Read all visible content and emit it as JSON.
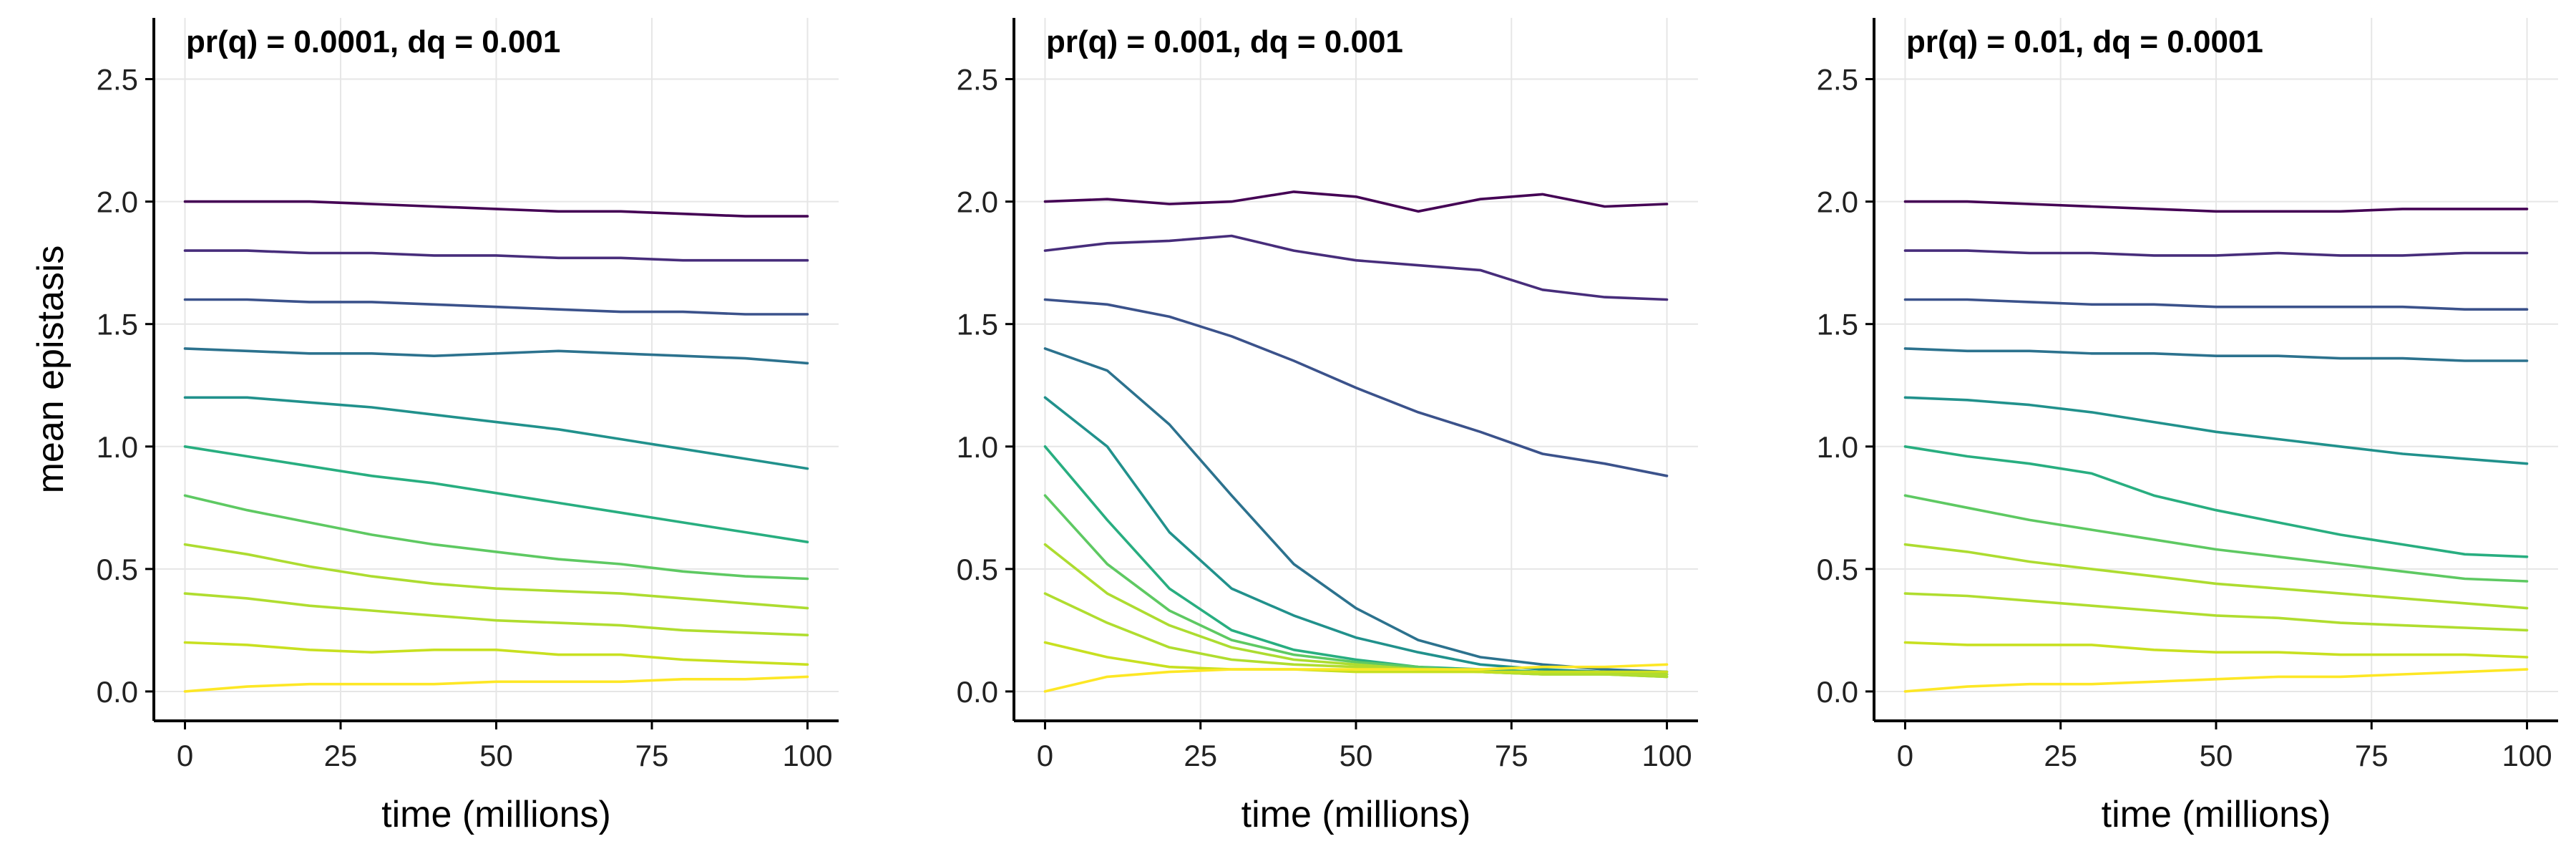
{
  "chart_data": [
    {
      "type": "line",
      "title": "pr(q) = 0.0001, dq = 0.001",
      "xlabel": "time (millions)",
      "ylabel": "mean epistasis",
      "xlim": [
        -5,
        105
      ],
      "ylim": [
        -0.12,
        2.75
      ],
      "xticks": [
        0,
        25,
        50,
        75,
        100
      ],
      "yticks": [
        0.0,
        0.5,
        1.0,
        1.5,
        2.0,
        2.5
      ],
      "grid": true,
      "legend": "none",
      "x": [
        0,
        10,
        20,
        30,
        40,
        50,
        60,
        70,
        80,
        90,
        100
      ],
      "series": [
        {
          "color": "#440154",
          "values": [
            2.0,
            2.0,
            2.0,
            1.99,
            1.98,
            1.97,
            1.96,
            1.96,
            1.95,
            1.94,
            1.94
          ]
        },
        {
          "color": "#472d7b",
          "values": [
            1.8,
            1.8,
            1.79,
            1.79,
            1.78,
            1.78,
            1.77,
            1.77,
            1.76,
            1.76,
            1.76
          ]
        },
        {
          "color": "#3b528b",
          "values": [
            1.6,
            1.6,
            1.59,
            1.59,
            1.58,
            1.57,
            1.56,
            1.55,
            1.55,
            1.54,
            1.54
          ]
        },
        {
          "color": "#2c728e",
          "values": [
            1.4,
            1.39,
            1.38,
            1.38,
            1.37,
            1.38,
            1.39,
            1.38,
            1.37,
            1.36,
            1.34
          ]
        },
        {
          "color": "#21918c",
          "values": [
            1.2,
            1.2,
            1.18,
            1.16,
            1.13,
            1.1,
            1.07,
            1.03,
            0.99,
            0.95,
            0.91
          ]
        },
        {
          "color": "#28ae80",
          "values": [
            1.0,
            0.96,
            0.92,
            0.88,
            0.85,
            0.81,
            0.77,
            0.73,
            0.69,
            0.65,
            0.61
          ]
        },
        {
          "color": "#5ec962",
          "values": [
            0.8,
            0.74,
            0.69,
            0.64,
            0.6,
            0.57,
            0.54,
            0.52,
            0.49,
            0.47,
            0.46
          ]
        },
        {
          "color": "#addc30",
          "values": [
            0.6,
            0.56,
            0.51,
            0.47,
            0.44,
            0.42,
            0.41,
            0.4,
            0.38,
            0.36,
            0.34
          ]
        },
        {
          "color": "#b0dd2f",
          "values": [
            0.4,
            0.38,
            0.35,
            0.33,
            0.31,
            0.29,
            0.28,
            0.27,
            0.25,
            0.24,
            0.23
          ]
        },
        {
          "color": "#c8e020",
          "values": [
            0.2,
            0.19,
            0.17,
            0.16,
            0.17,
            0.17,
            0.15,
            0.15,
            0.13,
            0.12,
            0.11
          ]
        },
        {
          "color": "#fde725",
          "values": [
            0.0,
            0.02,
            0.03,
            0.03,
            0.03,
            0.04,
            0.04,
            0.04,
            0.05,
            0.05,
            0.06
          ]
        }
      ]
    },
    {
      "type": "line",
      "title": "pr(q) = 0.001, dq = 0.001",
      "xlabel": "time (millions)",
      "ylabel": "",
      "xlim": [
        -5,
        105
      ],
      "ylim": [
        -0.12,
        2.75
      ],
      "xticks": [
        0,
        25,
        50,
        75,
        100
      ],
      "yticks": [
        0.0,
        0.5,
        1.0,
        1.5,
        2.0,
        2.5
      ],
      "grid": true,
      "legend": "none",
      "x": [
        0,
        10,
        20,
        30,
        40,
        50,
        60,
        70,
        80,
        90,
        100
      ],
      "series": [
        {
          "color": "#440154",
          "values": [
            2.0,
            2.01,
            1.99,
            2.0,
            2.04,
            2.02,
            1.96,
            2.01,
            2.03,
            1.98,
            1.99
          ]
        },
        {
          "color": "#472d7b",
          "values": [
            1.8,
            1.83,
            1.84,
            1.86,
            1.8,
            1.76,
            1.74,
            1.72,
            1.64,
            1.61,
            1.6
          ]
        },
        {
          "color": "#3b528b",
          "values": [
            1.6,
            1.58,
            1.53,
            1.45,
            1.35,
            1.24,
            1.14,
            1.06,
            0.97,
            0.93,
            0.88
          ]
        },
        {
          "color": "#2c728e",
          "values": [
            1.4,
            1.31,
            1.09,
            0.8,
            0.52,
            0.34,
            0.21,
            0.14,
            0.11,
            0.09,
            0.08
          ]
        },
        {
          "color": "#21918c",
          "values": [
            1.2,
            1.0,
            0.65,
            0.42,
            0.31,
            0.22,
            0.16,
            0.11,
            0.09,
            0.08,
            0.07
          ]
        },
        {
          "color": "#28ae80",
          "values": [
            1.0,
            0.7,
            0.42,
            0.25,
            0.17,
            0.13,
            0.1,
            0.09,
            0.08,
            0.07,
            0.07
          ]
        },
        {
          "color": "#5ec962",
          "values": [
            0.8,
            0.52,
            0.33,
            0.21,
            0.15,
            0.12,
            0.1,
            0.08,
            0.07,
            0.07,
            0.06
          ]
        },
        {
          "color": "#addc30",
          "values": [
            0.6,
            0.4,
            0.27,
            0.18,
            0.13,
            0.11,
            0.09,
            0.08,
            0.07,
            0.07,
            0.06
          ]
        },
        {
          "color": "#b0dd2f",
          "values": [
            0.4,
            0.28,
            0.18,
            0.13,
            0.11,
            0.1,
            0.09,
            0.08,
            0.07,
            0.07,
            0.07
          ]
        },
        {
          "color": "#c8e020",
          "values": [
            0.2,
            0.14,
            0.1,
            0.09,
            0.09,
            0.08,
            0.08,
            0.08,
            0.08,
            0.08,
            0.08
          ]
        },
        {
          "color": "#fde725",
          "values": [
            0.0,
            0.06,
            0.08,
            0.09,
            0.09,
            0.09,
            0.09,
            0.09,
            0.1,
            0.1,
            0.11
          ]
        }
      ]
    },
    {
      "type": "line",
      "title": "pr(q) = 0.01, dq = 0.0001",
      "xlabel": "time (millions)",
      "ylabel": "",
      "xlim": [
        -5,
        105
      ],
      "ylim": [
        -0.12,
        2.75
      ],
      "xticks": [
        0,
        25,
        50,
        75,
        100
      ],
      "yticks": [
        0.0,
        0.5,
        1.0,
        1.5,
        2.0,
        2.5
      ],
      "grid": true,
      "legend": "none",
      "x": [
        0,
        10,
        20,
        30,
        40,
        50,
        60,
        70,
        80,
        90,
        100
      ],
      "series": [
        {
          "color": "#440154",
          "values": [
            2.0,
            2.0,
            1.99,
            1.98,
            1.97,
            1.96,
            1.96,
            1.96,
            1.97,
            1.97,
            1.97
          ]
        },
        {
          "color": "#472d7b",
          "values": [
            1.8,
            1.8,
            1.79,
            1.79,
            1.78,
            1.78,
            1.79,
            1.78,
            1.78,
            1.79,
            1.79
          ]
        },
        {
          "color": "#3b528b",
          "values": [
            1.6,
            1.6,
            1.59,
            1.58,
            1.58,
            1.57,
            1.57,
            1.57,
            1.57,
            1.56,
            1.56
          ]
        },
        {
          "color": "#2c728e",
          "values": [
            1.4,
            1.39,
            1.39,
            1.38,
            1.38,
            1.37,
            1.37,
            1.36,
            1.36,
            1.35,
            1.35
          ]
        },
        {
          "color": "#21918c",
          "values": [
            1.2,
            1.19,
            1.17,
            1.14,
            1.1,
            1.06,
            1.03,
            1.0,
            0.97,
            0.95,
            0.93
          ]
        },
        {
          "color": "#28ae80",
          "values": [
            1.0,
            0.96,
            0.93,
            0.89,
            0.8,
            0.74,
            0.69,
            0.64,
            0.6,
            0.56,
            0.55
          ]
        },
        {
          "color": "#5ec962",
          "values": [
            0.8,
            0.75,
            0.7,
            0.66,
            0.62,
            0.58,
            0.55,
            0.52,
            0.49,
            0.46,
            0.45
          ]
        },
        {
          "color": "#addc30",
          "values": [
            0.6,
            0.57,
            0.53,
            0.5,
            0.47,
            0.44,
            0.42,
            0.4,
            0.38,
            0.36,
            0.34
          ]
        },
        {
          "color": "#b0dd2f",
          "values": [
            0.4,
            0.39,
            0.37,
            0.35,
            0.33,
            0.31,
            0.3,
            0.28,
            0.27,
            0.26,
            0.25
          ]
        },
        {
          "color": "#c8e020",
          "values": [
            0.2,
            0.19,
            0.19,
            0.19,
            0.17,
            0.16,
            0.16,
            0.15,
            0.15,
            0.15,
            0.14
          ]
        },
        {
          "color": "#fde725",
          "values": [
            0.0,
            0.02,
            0.03,
            0.03,
            0.04,
            0.05,
            0.06,
            0.06,
            0.07,
            0.08,
            0.09
          ]
        }
      ]
    }
  ]
}
